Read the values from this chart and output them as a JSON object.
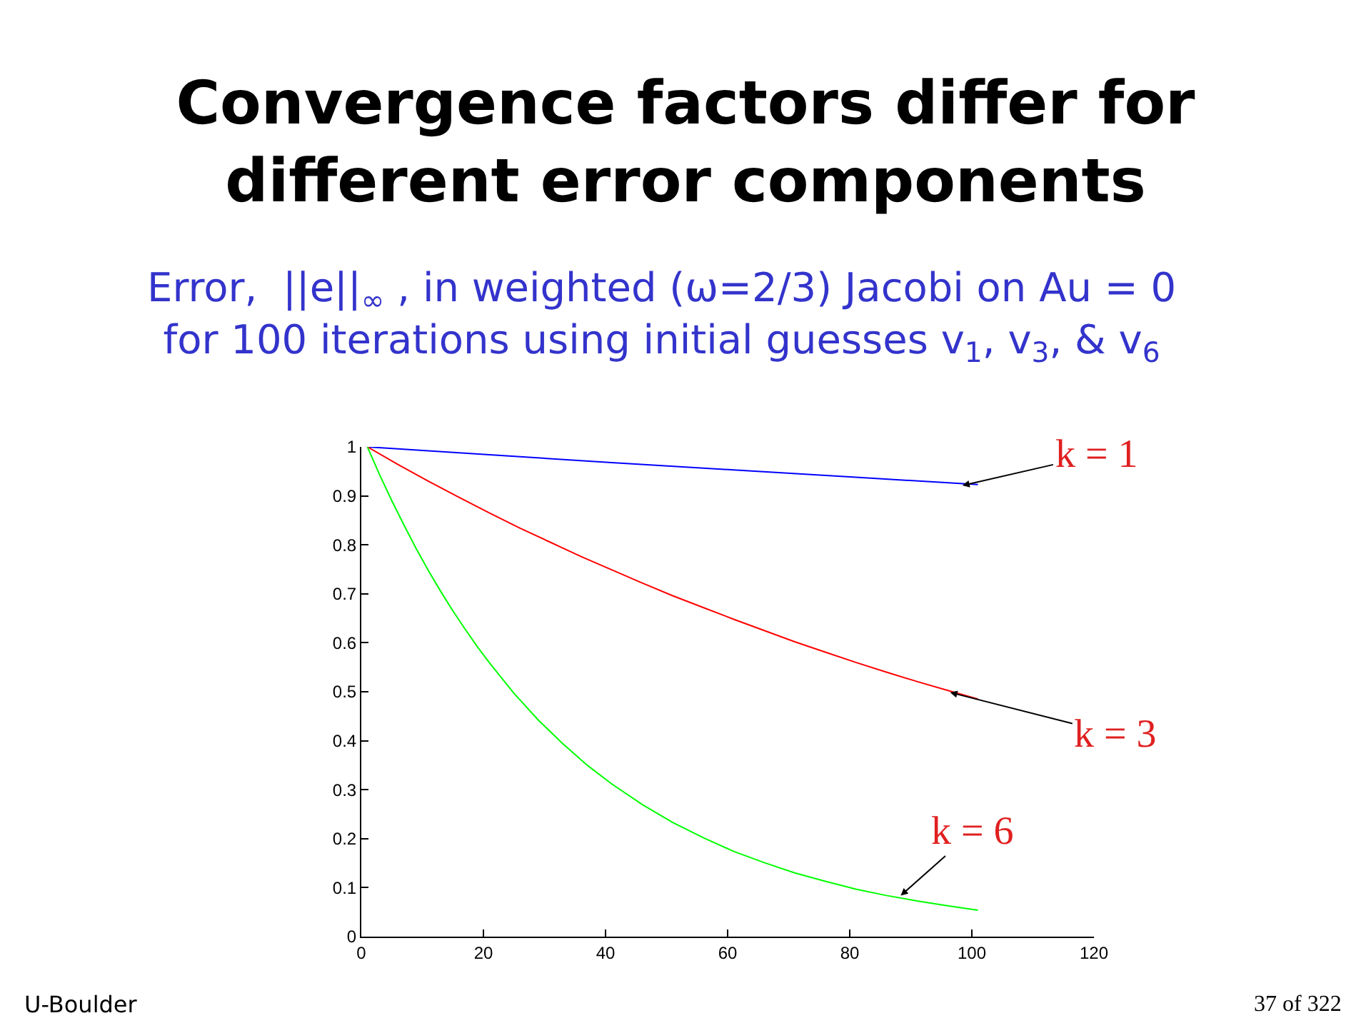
{
  "chart_data": {
    "type": "line",
    "title": "Convergence factors differ for\ndifferent error components",
    "subtitle": "Error,  ||e||$_{∞}$ , in weighted (ω=2/3) Jacobi on Au = 0\nfor 100 iterations using initial guesses v$_{1}$, v$_{3}$, & v$_{6}$",
    "series": [
      {
        "color": "#0000ff",
        "x": [
          1,
          21,
          41,
          61,
          81,
          101
        ],
        "values": [
          1.0,
          0.984,
          0.968,
          0.953,
          0.938,
          0.923
        ]
      },
      {
        "color": "#ff0000",
        "x": [
          1,
          6,
          11,
          16,
          21,
          26,
          31,
          36,
          41,
          46,
          51,
          56,
          61,
          66,
          71,
          76,
          81,
          86,
          91,
          96,
          101
        ],
        "values": [
          1.0,
          0.964,
          0.93,
          0.897,
          0.865,
          0.834,
          0.805,
          0.776,
          0.749,
          0.722,
          0.696,
          0.672,
          0.648,
          0.625,
          0.602,
          0.581,
          0.56,
          0.54,
          0.521,
          0.503,
          0.485
        ]
      },
      {
        "color": "#00ff00",
        "x": [
          1,
          3,
          5,
          7,
          9,
          11,
          13,
          15,
          17,
          19,
          21,
          25,
          29,
          33,
          37,
          41,
          46,
          51,
          56,
          61,
          66,
          71,
          76,
          81,
          86,
          91,
          96,
          101
        ],
        "values": [
          1.0,
          0.943,
          0.89,
          0.84,
          0.792,
          0.747,
          0.705,
          0.665,
          0.628,
          0.592,
          0.559,
          0.497,
          0.442,
          0.394,
          0.35,
          0.312,
          0.27,
          0.233,
          0.202,
          0.174,
          0.151,
          0.13,
          0.113,
          0.097,
          0.084,
          0.073,
          0.063,
          0.054
        ]
      }
    ],
    "xlim": [
      0,
      120
    ],
    "xticks": [
      0,
      20,
      40,
      60,
      80,
      100,
      120
    ],
    "ylim": [
      0,
      1
    ],
    "yticks": [
      0,
      0.1,
      0.2,
      0.3,
      0.4,
      0.5,
      0.6,
      0.7,
      0.8,
      0.9,
      1
    ],
    "annotations": [
      {
        "text": "k = 1",
        "x": 98,
        "y": 0.92
      },
      {
        "text": "k = 3",
        "x": 96,
        "y": 0.5
      },
      {
        "text": "k = 6",
        "x": 88,
        "y": 0.08
      },
      "U-Boulder",
      "37 of 322"
    ]
  }
}
